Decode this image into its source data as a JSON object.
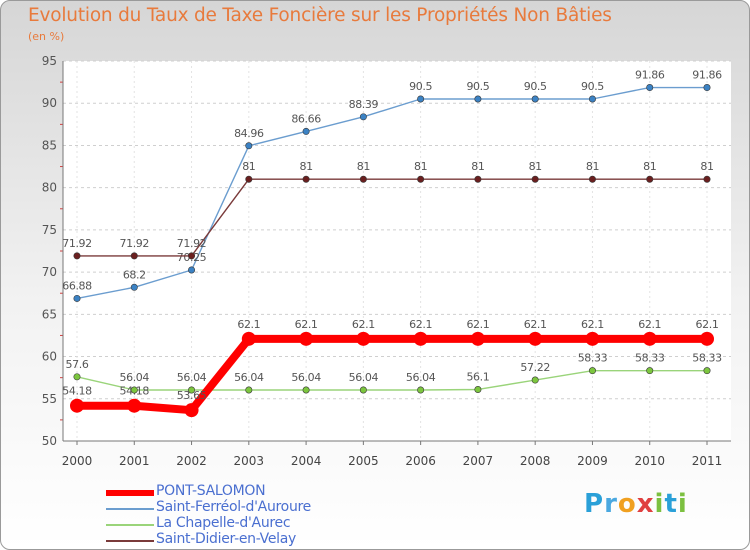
{
  "header": {
    "title": "Evolution du Taux de Taxe Foncière sur les Propriétés Non Bâties",
    "unit": "(en %)"
  },
  "logo": {
    "text": "Proxiti",
    "letters": [
      "P",
      "r",
      "o",
      "x",
      "i",
      "t",
      "i"
    ],
    "colors": [
      "#2aa0d8",
      "#4aa8e0",
      "#f0a020",
      "#e04040",
      "#7cc040",
      "#2aa0d8",
      "#7cc040"
    ]
  },
  "chart_data": {
    "type": "line",
    "title": "Evolution du Taux de Taxe Foncière sur les Propriétés Non Bâties",
    "ylabel": "(en %)",
    "xlabel": "",
    "ylim": [
      50,
      95
    ],
    "yticks": [
      50,
      55,
      60,
      65,
      70,
      75,
      80,
      85,
      90,
      95
    ],
    "grid": true,
    "legend_position": "bottom-left",
    "categories": [
      "2000",
      "2001",
      "2002",
      "2003",
      "2004",
      "2005",
      "2006",
      "2007",
      "2008",
      "2009",
      "2010",
      "2011"
    ],
    "series": [
      {
        "name": "PONT-SALOMON",
        "color": "#ff0000",
        "marker_color": "#ff0000",
        "bold": true,
        "values": [
          54.18,
          54.18,
          53.65,
          62.1,
          62.1,
          62.1,
          62.1,
          62.1,
          62.1,
          62.1,
          62.1,
          62.1
        ],
        "labels": [
          "54.18",
          "54.18",
          "53.65",
          "62.1",
          "62.1",
          "62.1",
          "62.1",
          "62.1",
          "62.1",
          "62.1",
          "62.1",
          "62.1"
        ]
      },
      {
        "name": "Saint-Ferréol-d'Auroure",
        "color": "#6b9dcf",
        "marker_color": "#3b82c4",
        "bold": false,
        "values": [
          66.88,
          68.2,
          70.25,
          84.96,
          86.66,
          88.39,
          90.5,
          90.5,
          90.5,
          90.5,
          91.86,
          91.86
        ],
        "labels": [
          "66.88",
          "68.2",
          "70.25",
          "84.96",
          "86.66",
          "88.39",
          "90.5",
          "90.5",
          "90.5",
          "90.5",
          "91.86",
          "91.86"
        ]
      },
      {
        "name": "La Chapelle-d'Aurec",
        "color": "#9ad47a",
        "marker_color": "#7cc63e",
        "bold": false,
        "values": [
          57.6,
          56.04,
          56.04,
          56.04,
          56.04,
          56.04,
          56.04,
          56.1,
          57.22,
          58.33,
          58.33,
          58.33
        ],
        "labels": [
          "57.6",
          "56.04",
          "56.04",
          "56.04",
          "56.04",
          "56.04",
          "56.04",
          "56.1",
          "57.22",
          "58.33",
          "58.33",
          "58.33"
        ]
      },
      {
        "name": "Saint-Didier-en-Velay",
        "color": "#7a3a3a",
        "marker_color": "#6a1f1f",
        "bold": false,
        "values": [
          71.92,
          71.92,
          71.92,
          81,
          81,
          81,
          81,
          81,
          81,
          81,
          81,
          81
        ],
        "labels": [
          "71.92",
          "71.92",
          "71.92",
          "81",
          "81",
          "81",
          "81",
          "81",
          "81",
          "81",
          "81",
          "81"
        ]
      }
    ]
  }
}
